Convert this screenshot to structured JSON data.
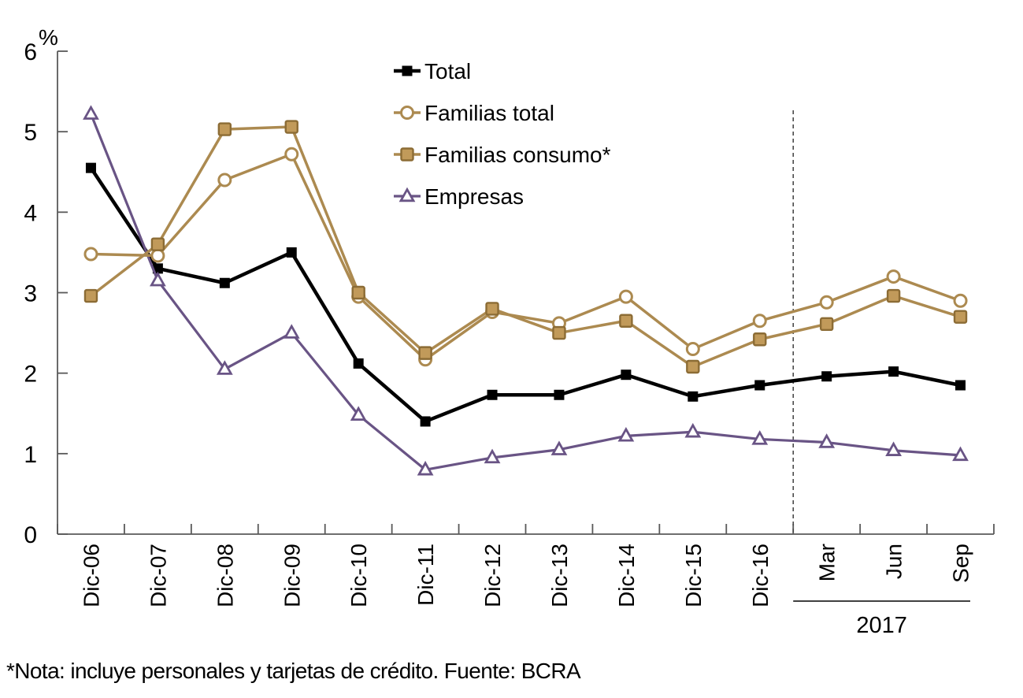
{
  "chart_data": {
    "type": "line",
    "title": "",
    "unit_label": "%",
    "xlabel": "",
    "ylabel": "%",
    "ylim": [
      0,
      6
    ],
    "ytick_step": 1,
    "grid": false,
    "legend_position": "top-center",
    "categories": [
      "Dic-06",
      "Dic-07",
      "Dic-08",
      "Dic-09",
      "Dic-10",
      "Dic-11",
      "Dic-12",
      "Dic-13",
      "Dic-14",
      "Dic-15",
      "Dic-16",
      "Mar",
      "Jun",
      "Sep"
    ],
    "year_group": {
      "label": "2017",
      "categories": [
        "Mar",
        "Jun",
        "Sep"
      ],
      "start_index": 11,
      "end_index": 13
    },
    "divider_after_category": "Dic-16",
    "divider_after_index": 10,
    "axis_color": "#595959",
    "divider_color": "#404040",
    "series": [
      {
        "name": "Total",
        "marker": "filled-square",
        "color": "#000000",
        "marker_fill": "#000000",
        "values": [
          4.55,
          3.3,
          3.12,
          3.5,
          2.12,
          1.4,
          1.73,
          1.73,
          1.98,
          1.71,
          1.85,
          1.96,
          2.02,
          1.85
        ]
      },
      {
        "name": "Familias total",
        "marker": "open-circle",
        "color": "#AC8A50",
        "marker_fill": "#FFFFFF",
        "values": [
          3.48,
          3.46,
          4.4,
          4.72,
          2.95,
          2.17,
          2.76,
          2.62,
          2.95,
          2.3,
          2.65,
          2.88,
          3.2,
          2.9
        ]
      },
      {
        "name": "Familias consumo*",
        "marker": "filled-square",
        "color": "#AC8A50",
        "marker_fill": "#C19A5A",
        "marker_stroke": "#8C6C35",
        "values": [
          2.96,
          3.6,
          5.03,
          5.06,
          3.0,
          2.25,
          2.8,
          2.5,
          2.65,
          2.08,
          2.42,
          2.61,
          2.96,
          2.7
        ]
      },
      {
        "name": "Empresas",
        "marker": "open-triangle",
        "color": "#695485",
        "marker_fill": "#FFFFFF",
        "values": [
          5.22,
          3.15,
          2.05,
          2.5,
          1.48,
          0.8,
          0.95,
          1.05,
          1.22,
          1.27,
          1.18,
          1.14,
          1.04,
          0.98
        ]
      }
    ]
  },
  "footnote": {
    "text": "*Nota: incluye personales y tarjetas de crédito. Fuente: BCRA"
  }
}
